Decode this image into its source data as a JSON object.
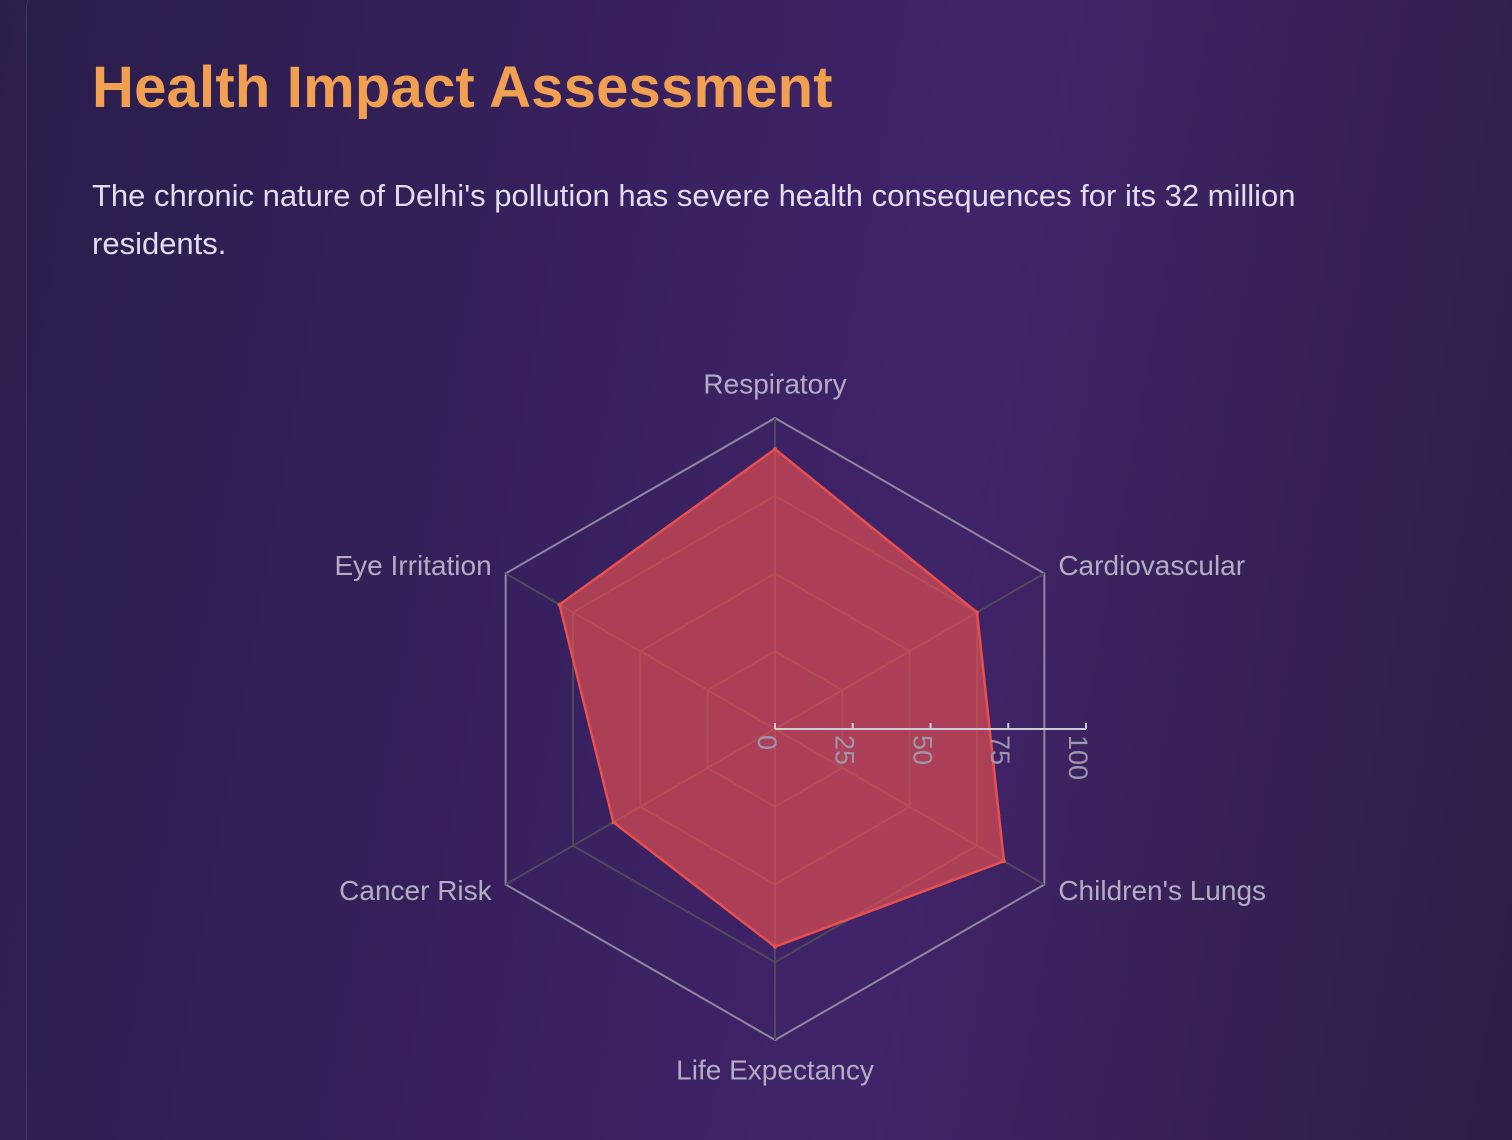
{
  "header": {
    "title": "Health Impact Assessment",
    "description": "The chronic nature of Delhi's pollution has severe health consequences for its 32 million residents."
  },
  "chart_data": {
    "type": "radar",
    "categories": [
      "Respiratory",
      "Cardiovascular",
      "Children's Lungs",
      "Life Expectancy",
      "Cancer Risk",
      "Eye Irritation"
    ],
    "series": [
      {
        "values": [
          90,
          75,
          85,
          70,
          60,
          80
        ],
        "color": "#e85050"
      }
    ],
    "ticks": [
      "0",
      "25",
      "50",
      "75",
      "100"
    ],
    "range": [
      0,
      100
    ],
    "grid": true
  }
}
